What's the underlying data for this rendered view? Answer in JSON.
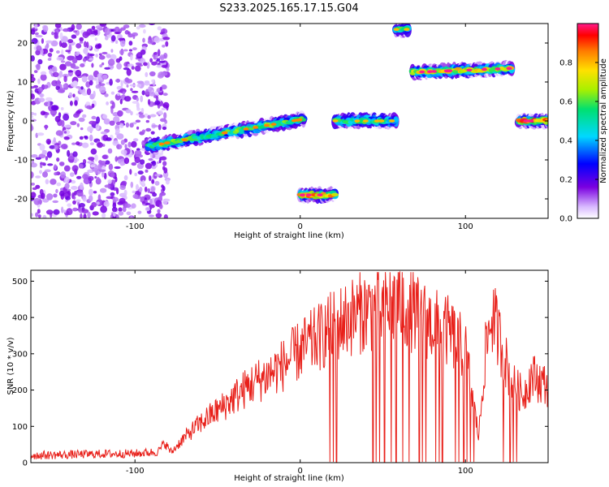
{
  "title": "S233.2025.165.17.15.G04",
  "colors": {
    "snr_line": "#e8201a",
    "noise_dot": "#9a3df0"
  },
  "chart_data": [
    {
      "type": "heatmap",
      "xlabel": "Height of straight line (km)",
      "ylabel": "Frequency (Hz)",
      "xlim": [
        -163,
        150
      ],
      "ylim": [
        -25,
        25
      ],
      "xticks": [
        -100,
        0,
        100
      ],
      "yticks": [
        -20,
        -10,
        0,
        10,
        20
      ],
      "colorbar": {
        "label": "Normalized spectral amplitude",
        "range": [
          0,
          1
        ],
        "ticks": [
          0.0,
          0.2,
          0.4,
          0.6,
          0.8
        ],
        "colormap": "rainbow (white → violet → blue → cyan → green → yellow → orange → red → magenta)"
      },
      "features": [
        {
          "name": "noise region",
          "x_range": [
            -163,
            -80
          ],
          "amplitude": 0.1
        },
        {
          "name": "ridge",
          "x_range": [
            -92,
            2
          ],
          "freq_start": -6.5,
          "freq_end": 0.5,
          "amplitude": 0.55
        },
        {
          "name": "ridge",
          "x_range": [
            0,
            21
          ],
          "freq_start": -19,
          "freq_end": -19,
          "amplitude": 0.8
        },
        {
          "name": "ridge",
          "x_range": [
            21,
            58
          ],
          "freq_start": 0,
          "freq_end": 0,
          "amplitude": 0.5
        },
        {
          "name": "ridge",
          "x_range": [
            58,
            65
          ],
          "freq_start": 23.5,
          "freq_end": 23.5,
          "amplitude": 0.5
        },
        {
          "name": "ridge",
          "x_range": [
            68,
            128
          ],
          "freq_start": 12.5,
          "freq_end": 13.5,
          "amplitude": 0.7
        },
        {
          "name": "ridge",
          "x_range": [
            132,
            150
          ],
          "freq_start": 0,
          "freq_end": 0,
          "amplitude": 0.85
        }
      ]
    },
    {
      "type": "line",
      "xlabel": "Height of straight line (km)",
      "ylabel": "SNR (10 * v/v)",
      "xlim": [
        -163,
        150
      ],
      "ylim": [
        0,
        530
      ],
      "xticks": [
        -100,
        0,
        100
      ],
      "yticks": [
        0,
        100,
        200,
        300,
        400,
        500
      ],
      "envelope": {
        "x": [
          -163,
          -140,
          -120,
          -100,
          -86,
          -82,
          -78,
          -72,
          -64,
          -56,
          -48,
          -40,
          -30,
          -20,
          -10,
          0,
          10,
          20,
          30,
          40,
          50,
          60,
          70,
          80,
          90,
          100,
          108,
          112,
          116,
          122,
          128,
          135,
          140,
          150
        ],
        "y": [
          20,
          22,
          24,
          25,
          30,
          55,
          28,
          60,
          95,
          125,
          150,
          180,
          215,
          240,
          270,
          310,
          340,
          375,
          400,
          420,
          425,
          445,
          410,
          380,
          360,
          310,
          70,
          300,
          410,
          320,
          220,
          185,
          240,
          210
        ]
      },
      "dropouts_to_zero_at_x": [
        18,
        20,
        22,
        44,
        46,
        48,
        51,
        55,
        58,
        62,
        66,
        72,
        74,
        76,
        82,
        84,
        86,
        94,
        96,
        99,
        101,
        103,
        105,
        123,
        127,
        129,
        131
      ]
    }
  ]
}
